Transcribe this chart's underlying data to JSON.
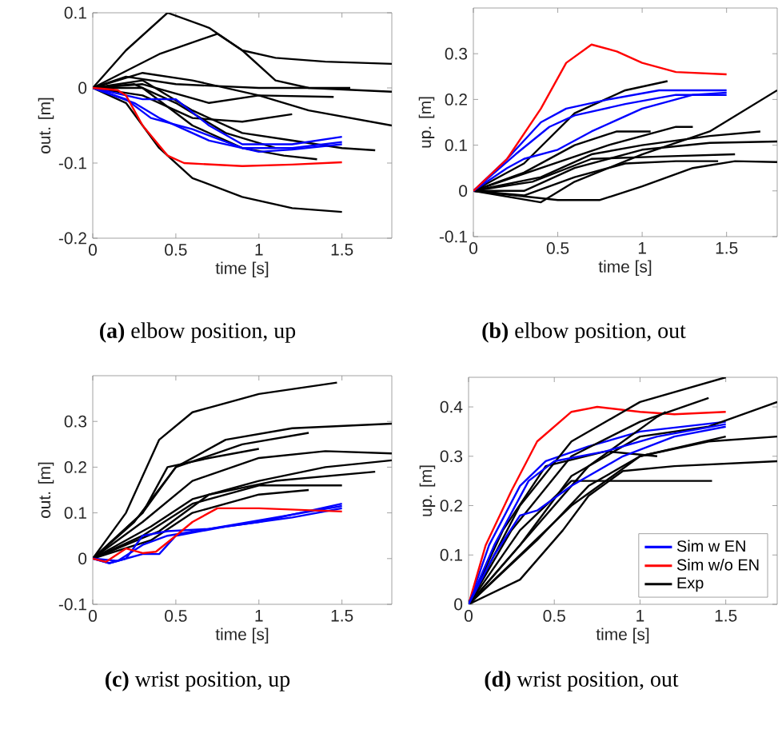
{
  "chart_data": [
    {
      "type": "line",
      "title": "**(a)** elbow position, up",
      "xlabel": "time [s]",
      "ylabel": "out. [m]",
      "xlim": [
        0,
        1.8
      ],
      "ylim": [
        -0.2,
        0.1
      ],
      "xticks": [
        0,
        0.5,
        1,
        1.5
      ],
      "yticks": [
        -0.2,
        -0.1,
        0,
        0.1
      ],
      "legend": false,
      "series": [
        {
          "color": "#000000",
          "x": [
            0,
            0.2,
            0.45,
            0.7,
            0.9,
            1.1,
            1.4,
            1.8
          ],
          "values": [
            0,
            0.05,
            0.1,
            0.08,
            0.05,
            0.04,
            0.035,
            0.032
          ]
        },
        {
          "color": "#000000",
          "x": [
            0,
            0.4,
            0.75,
            0.9,
            1.1,
            1.3,
            1.8
          ],
          "values": [
            0,
            0.045,
            0.072,
            0.05,
            0.01,
            0,
            -0.005
          ]
        },
        {
          "color": "#000000",
          "x": [
            0,
            0.2,
            0.4,
            0.6,
            0.9,
            1.2,
            1.5
          ],
          "values": [
            0,
            -0.02,
            -0.08,
            -0.12,
            -0.145,
            -0.16,
            -0.165
          ]
        },
        {
          "color": "#000000",
          "x": [
            0,
            0.3,
            0.6,
            1.0,
            1.3,
            1.8
          ],
          "values": [
            0,
            0.02,
            0.01,
            -0.01,
            -0.03,
            -0.05
          ]
        },
        {
          "color": "#000000",
          "x": [
            0,
            0.2,
            0.5,
            1.0,
            1.55
          ],
          "values": [
            0,
            0.015,
            0.005,
            0,
            0
          ]
        },
        {
          "color": "#000000",
          "x": [
            0,
            0.3,
            0.7,
            1.0,
            1.45
          ],
          "values": [
            0,
            0.005,
            -0.02,
            -0.01,
            -0.012
          ]
        },
        {
          "color": "#000000",
          "x": [
            0,
            0.3,
            0.6,
            0.9,
            1.2
          ],
          "values": [
            0,
            -0.01,
            -0.04,
            -0.045,
            -0.035
          ]
        },
        {
          "color": "#000000",
          "x": [
            0,
            0.3,
            0.6,
            0.9,
            1.2,
            1.5,
            1.7
          ],
          "values": [
            0,
            0.01,
            -0.03,
            -0.06,
            -0.07,
            -0.08,
            -0.083
          ]
        },
        {
          "color": "#000000",
          "x": [
            0,
            0.3,
            0.6,
            0.9,
            1.15,
            1.35
          ],
          "values": [
            0,
            0,
            -0.05,
            -0.08,
            -0.09,
            -0.095
          ]
        },
        {
          "color": "#000000",
          "x": [
            0,
            0.25,
            0.5,
            0.8,
            1.1
          ],
          "values": [
            0,
            0.005,
            -0.02,
            -0.06,
            -0.08
          ]
        },
        {
          "color": "#0000ff",
          "x": [
            0,
            0.2,
            0.3,
            0.5,
            0.7,
            0.9,
            1.2,
            1.5
          ],
          "values": [
            0,
            -0.01,
            -0.015,
            -0.015,
            -0.05,
            -0.075,
            -0.075,
            -0.065
          ]
        },
        {
          "color": "#0000ff",
          "x": [
            0,
            0.2,
            0.35,
            0.6,
            0.9,
            1.2,
            1.5
          ],
          "values": [
            0,
            -0.015,
            -0.04,
            -0.055,
            -0.08,
            -0.08,
            -0.072
          ]
        },
        {
          "color": "#0000ff",
          "x": [
            0,
            0.25,
            0.4,
            0.7,
            1.0,
            1.2,
            1.5
          ],
          "values": [
            0,
            -0.02,
            -0.04,
            -0.07,
            -0.085,
            -0.082,
            -0.075
          ]
        },
        {
          "color": "#ff0000",
          "x": [
            0,
            0.15,
            0.2,
            0.3,
            0.45,
            0.55,
            0.9,
            1.2,
            1.5
          ],
          "values": [
            0,
            -0.003,
            -0.01,
            -0.05,
            -0.09,
            -0.1,
            -0.104,
            -0.102,
            -0.099
          ]
        }
      ]
    },
    {
      "type": "line",
      "title": "**(b)** elbow position, out",
      "xlabel": "time [s]",
      "ylabel": "up. [m]",
      "xlim": [
        0,
        1.8
      ],
      "ylim": [
        -0.1,
        0.4
      ],
      "xticks": [
        0,
        0.5,
        1,
        1.5
      ],
      "yticks": [
        -0.1,
        0,
        0.1,
        0.2,
        0.3
      ],
      "legend": false,
      "series": [
        {
          "color": "#000000",
          "x": [
            0,
            0.3,
            0.6,
            0.9,
            1.15
          ],
          "values": [
            0,
            0.06,
            0.17,
            0.22,
            0.24
          ]
        },
        {
          "color": "#000000",
          "x": [
            0,
            0.5,
            0.75,
            1.0,
            1.3,
            1.55,
            1.8
          ],
          "values": [
            0,
            -0.02,
            -0.02,
            0.01,
            0.05,
            0.065,
            0.063
          ]
        },
        {
          "color": "#000000",
          "x": [
            0,
            0.4,
            0.6,
            1.0,
            1.4,
            1.8
          ],
          "values": [
            0,
            -0.025,
            0.02,
            0.08,
            0.13,
            0.22
          ]
        },
        {
          "color": "#000000",
          "x": [
            0,
            0.3,
            0.6,
            0.85,
            1.05
          ],
          "values": [
            0,
            0.04,
            0.1,
            0.13,
            0.13
          ]
        },
        {
          "color": "#000000",
          "x": [
            0,
            0.4,
            0.7,
            1.0,
            1.4,
            1.7
          ],
          "values": [
            0,
            0.03,
            0.08,
            0.1,
            0.12,
            0.13
          ]
        },
        {
          "color": "#000000",
          "x": [
            0,
            0.3,
            0.6,
            1.0,
            1.4,
            1.8
          ],
          "values": [
            0,
            0,
            0.05,
            0.09,
            0.105,
            0.108
          ]
        },
        {
          "color": "#000000",
          "x": [
            0,
            0.35,
            0.7,
            1.1,
            1.55
          ],
          "values": [
            0,
            0.02,
            0.07,
            0.075,
            0.08
          ]
        },
        {
          "color": "#000000",
          "x": [
            0,
            0.3,
            0.6,
            0.9,
            1.2,
            1.45
          ],
          "values": [
            0,
            -0.01,
            0.03,
            0.06,
            0.065,
            0.065
          ]
        },
        {
          "color": "#000000",
          "x": [
            0,
            0.4,
            0.8,
            1.2,
            1.3
          ],
          "values": [
            0,
            0.05,
            0.1,
            0.14,
            0.14
          ]
        },
        {
          "color": "#0000ff",
          "x": [
            0,
            0.2,
            0.4,
            0.55,
            0.8,
            1.1,
            1.5
          ],
          "values": [
            0,
            0.07,
            0.15,
            0.18,
            0.2,
            0.22,
            0.22
          ]
        },
        {
          "color": "#0000ff",
          "x": [
            0,
            0.25,
            0.45,
            0.6,
            0.9,
            1.2,
            1.5
          ],
          "values": [
            0,
            0.08,
            0.14,
            0.165,
            0.19,
            0.21,
            0.21
          ]
        },
        {
          "color": "#0000ff",
          "x": [
            0,
            0.2,
            0.3,
            0.5,
            0.7,
            1.0,
            1.3,
            1.5
          ],
          "values": [
            0,
            0.05,
            0.07,
            0.09,
            0.13,
            0.18,
            0.21,
            0.215
          ]
        },
        {
          "color": "#ff0000",
          "x": [
            0,
            0.2,
            0.4,
            0.55,
            0.7,
            0.85,
            1.0,
            1.2,
            1.5
          ],
          "values": [
            0,
            0.07,
            0.18,
            0.28,
            0.32,
            0.305,
            0.28,
            0.26,
            0.255
          ]
        }
      ]
    },
    {
      "type": "line",
      "title": "**(c)** wrist position, up",
      "xlabel": "time [s]",
      "ylabel": "out. [m]",
      "xlim": [
        0,
        1.8
      ],
      "ylim": [
        -0.1,
        0.4
      ],
      "xticks": [
        0,
        0.5,
        1,
        1.5
      ],
      "yticks": [
        -0.1,
        0,
        0.1,
        0.2,
        0.3
      ],
      "legend": false,
      "series": [
        {
          "color": "#000000",
          "x": [
            0,
            0.2,
            0.4,
            0.6,
            1.0,
            1.47
          ],
          "values": [
            0,
            0.1,
            0.26,
            0.32,
            0.36,
            0.385
          ]
        },
        {
          "color": "#000000",
          "x": [
            0,
            0.25,
            0.5,
            0.8,
            1.2,
            1.8
          ],
          "values": [
            0,
            0.08,
            0.2,
            0.26,
            0.285,
            0.295
          ]
        },
        {
          "color": "#000000",
          "x": [
            0,
            0.3,
            0.5,
            0.9,
            1.3
          ],
          "values": [
            0,
            0.1,
            0.2,
            0.25,
            0.275
          ]
        },
        {
          "color": "#000000",
          "x": [
            0,
            0.3,
            0.6,
            1.0,
            1.4,
            1.8
          ],
          "values": [
            0,
            0.08,
            0.17,
            0.22,
            0.235,
            0.23
          ]
        },
        {
          "color": "#000000",
          "x": [
            0,
            0.35,
            0.6,
            1.0,
            1.4,
            1.8
          ],
          "values": [
            0,
            0.07,
            0.13,
            0.17,
            0.2,
            0.215
          ]
        },
        {
          "color": "#000000",
          "x": [
            0,
            0.3,
            0.6,
            1.0,
            1.5
          ],
          "values": [
            0,
            0.05,
            0.12,
            0.16,
            0.16
          ]
        },
        {
          "color": "#000000",
          "x": [
            0,
            0.35,
            0.6,
            1.0,
            1.3
          ],
          "values": [
            0,
            0.04,
            0.1,
            0.14,
            0.15
          ]
        },
        {
          "color": "#000000",
          "x": [
            0,
            0.3,
            0.45,
            0.7,
            1.0
          ],
          "values": [
            0,
            0.1,
            0.2,
            0.22,
            0.24
          ]
        },
        {
          "color": "#000000",
          "x": [
            0,
            0.4,
            0.7,
            1.1,
            1.7
          ],
          "values": [
            0,
            0.06,
            0.14,
            0.17,
            0.19
          ]
        },
        {
          "color": "#0000ff",
          "x": [
            0,
            0.1,
            0.2,
            0.3,
            0.45,
            0.7,
            1.0,
            1.5
          ],
          "values": [
            0,
            -0.01,
            0,
            0.05,
            0.06,
            0.065,
            0.08,
            0.12
          ]
        },
        {
          "color": "#0000ff",
          "x": [
            0,
            0.1,
            0.3,
            0.4,
            0.5,
            0.8,
            1.2,
            1.5
          ],
          "values": [
            0,
            -0.01,
            0.01,
            0.01,
            0.05,
            0.07,
            0.09,
            0.11
          ]
        },
        {
          "color": "#0000ff",
          "x": [
            0,
            0.15,
            0.3,
            0.45,
            0.7,
            1.1,
            1.5
          ],
          "values": [
            0,
            -0.005,
            0.03,
            0.05,
            0.065,
            0.09,
            0.115
          ]
        },
        {
          "color": "#ff0000",
          "x": [
            0,
            0.08,
            0.2,
            0.3,
            0.38,
            0.5,
            0.6,
            0.75,
            1.0,
            1.5
          ],
          "values": [
            0,
            -0.007,
            0.022,
            0.012,
            0.015,
            0.05,
            0.08,
            0.11,
            0.11,
            0.103
          ]
        }
      ]
    },
    {
      "type": "line",
      "title": "**(d)** wrist position, out",
      "xlabel": "time [s]",
      "ylabel": "up. [m]",
      "xlim": [
        0,
        1.8
      ],
      "ylim": [
        0,
        0.46
      ],
      "xticks": [
        0,
        0.5,
        1,
        1.5
      ],
      "yticks": [
        0,
        0.1,
        0.2,
        0.3,
        0.4
      ],
      "legend": "bottom right",
      "series": [
        {
          "name": "Sim w EN",
          "color": "#0000ff",
          "x": [
            0,
            0.12,
            0.3,
            0.45,
            0.7,
            1.0,
            1.5
          ],
          "values": [
            0,
            0.12,
            0.24,
            0.29,
            0.32,
            0.35,
            0.37
          ]
        },
        {
          "name": "Sim w/o EN",
          "color": "#ff0000",
          "x": [
            0,
            0.1,
            0.25,
            0.4,
            0.5,
            0.6,
            0.75,
            1.0,
            1.2,
            1.5
          ],
          "values": [
            0,
            0.12,
            0.23,
            0.33,
            0.36,
            0.39,
            0.4,
            0.39,
            0.385,
            0.39
          ]
        },
        {
          "name": "Exp",
          "color": "#000000",
          "x": [
            0,
            0.3,
            0.6,
            1.0,
            1.5
          ],
          "values": [
            0,
            0.2,
            0.33,
            0.41,
            0.46
          ]
        },
        {
          "color": "#000000",
          "x": [
            0,
            0.25,
            0.6,
            1.0,
            1.4
          ],
          "values": [
            0,
            0.15,
            0.3,
            0.37,
            0.418
          ]
        },
        {
          "color": "#000000",
          "x": [
            0,
            0.3,
            0.6,
            1.0,
            1.4,
            1.8
          ],
          "values": [
            0,
            0.1,
            0.2,
            0.3,
            0.33,
            0.34
          ]
        },
        {
          "color": "#000000",
          "x": [
            0,
            0.3,
            0.55,
            0.7,
            0.9,
            1.2,
            1.8
          ],
          "values": [
            0,
            0.05,
            0.15,
            0.22,
            0.27,
            0.28,
            0.29
          ]
        },
        {
          "color": "#000000",
          "x": [
            0,
            0.3,
            0.6,
            1.0,
            1.42
          ],
          "values": [
            0,
            0.15,
            0.25,
            0.25,
            0.25
          ]
        },
        {
          "color": "#000000",
          "x": [
            0,
            0.2,
            0.45,
            0.8,
            1.1
          ],
          "values": [
            0,
            0.15,
            0.28,
            0.31,
            0.3
          ]
        },
        {
          "color": "#000000",
          "x": [
            0,
            0.3,
            0.6,
            1.0,
            1.4,
            1.8
          ],
          "values": [
            0,
            0.12,
            0.26,
            0.34,
            0.36,
            0.41
          ]
        },
        {
          "color": "#000000",
          "x": [
            0,
            0.4,
            0.7,
            1.0,
            1.5
          ],
          "values": [
            0,
            0.13,
            0.24,
            0.3,
            0.34
          ]
        },
        {
          "color": "#000000",
          "x": [
            0,
            0.2,
            0.4,
            0.7,
            1.1,
            1.15
          ],
          "values": [
            0,
            0.08,
            0.16,
            0.28,
            0.38,
            0.39
          ]
        },
        {
          "color": "#0000ff",
          "x": [
            0,
            0.15,
            0.35,
            0.5,
            0.8,
            1.1,
            1.5
          ],
          "values": [
            0,
            0.12,
            0.25,
            0.29,
            0.31,
            0.34,
            0.365
          ]
        },
        {
          "color": "#0000ff",
          "x": [
            0,
            0.15,
            0.3,
            0.4,
            0.6,
            0.9,
            1.2,
            1.5
          ],
          "values": [
            0,
            0.1,
            0.18,
            0.19,
            0.24,
            0.3,
            0.34,
            0.36
          ]
        }
      ]
    }
  ]
}
